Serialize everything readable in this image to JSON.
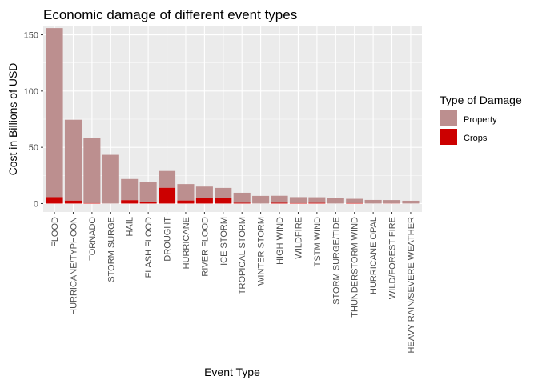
{
  "chart_data": {
    "type": "bar",
    "stacked": true,
    "title": "Economic damage of different event types",
    "xlabel": "Event Type",
    "ylabel": "Cost in Billions of USD",
    "ylim": [
      -7.5,
      157.5
    ],
    "yticks": [
      0,
      50,
      100,
      150
    ],
    "grid": true,
    "legend_position": "right",
    "legend_title": "Type of Damage",
    "categories": [
      "FLOOD",
      "HURRICANE/TYPHOON",
      "TORNADO",
      "STORM SURGE",
      "HAIL",
      "FLASH FLOOD",
      "DROUGHT",
      "HURRICANE",
      "RIVER FLOOD",
      "ICE STORM",
      "TROPICAL STORM",
      "WINTER STORM",
      "HIGH WIND",
      "WILDFIRE",
      "TSTM WIND",
      "STORM SURGE/TIDE",
      "THUNDERSTORM WIND",
      "HURRICANE OPAL",
      "WILD/FOREST FIRE",
      "HEAVY RAIN/SEVERE WEATHER"
    ],
    "series": [
      {
        "name": "Property",
        "color": "#bc8f8f",
        "values": [
          150.3,
          71.9,
          58.0,
          43.3,
          18.8,
          17.6,
          15.0,
          14.6,
          10.1,
          8.9,
          8.9,
          6.8,
          6.2,
          5.3,
          5.0,
          4.6,
          3.8,
          3.2,
          3.0,
          2.5
        ]
      },
      {
        "name": "Crops",
        "color": "#cc0000",
        "values": [
          5.7,
          2.6,
          0.4,
          0.0,
          3.0,
          1.4,
          14.0,
          2.7,
          5.0,
          5.0,
          0.7,
          0.0,
          0.7,
          0.4,
          0.6,
          0.0,
          0.4,
          0.0,
          0.1,
          0.0
        ]
      }
    ]
  }
}
